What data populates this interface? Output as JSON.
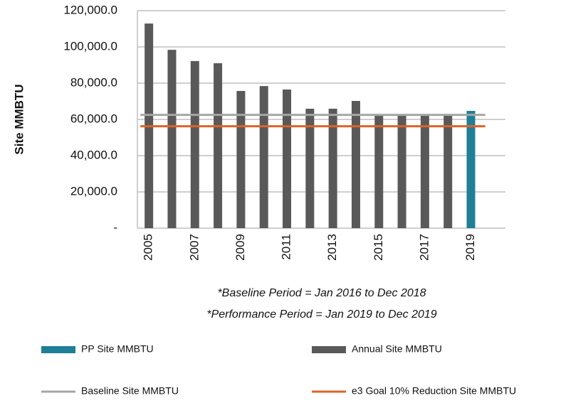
{
  "chart_data": {
    "type": "bar",
    "ylabel": "Site MMBTU",
    "categories": [
      "2005",
      null,
      "2007",
      null,
      "2009",
      null,
      "2011",
      null,
      "2013",
      null,
      "2015",
      null,
      "2017",
      null,
      "2019",
      null
    ],
    "series": [
      {
        "name": "PP Site MMBTU",
        "type": "bar",
        "color": "#1f7f96",
        "values": [
          null,
          null,
          null,
          null,
          null,
          null,
          null,
          null,
          null,
          null,
          null,
          null,
          null,
          null,
          64700,
          null
        ]
      },
      {
        "name": "Annual Site MMBTU",
        "type": "bar",
        "color": "#595959",
        "values": [
          112900,
          98400,
          92200,
          91000,
          75700,
          78400,
          76500,
          65900,
          65900,
          70200,
          62400,
          62000,
          62000,
          62000,
          null,
          null
        ]
      },
      {
        "name": "Baseline Site MMBTU",
        "type": "line",
        "color": "#a6a6a6",
        "value": 62500
      },
      {
        "name": "e3 Goal 10% Reduction Site MMBTU",
        "type": "line",
        "color": "#e0622a",
        "value": 56250
      }
    ],
    "ylim": [
      0,
      120000
    ],
    "yticks": [
      {
        "value": 0,
        "label": "-"
      },
      {
        "value": 20000,
        "label": "20,000.0"
      },
      {
        "value": 40000,
        "label": "40,000.0"
      },
      {
        "value": 60000,
        "label": "60,000.0"
      },
      {
        "value": 80000,
        "label": "80,000.0"
      },
      {
        "value": 100000,
        "label": "100,000.0"
      },
      {
        "value": 120000,
        "label": "120,000.0"
      }
    ],
    "grid": true,
    "notes": [
      "*Baseline Period = Jan 2016 to Dec 2018",
      "*Performance Period = Jan 2019 to Dec 2019"
    ]
  }
}
